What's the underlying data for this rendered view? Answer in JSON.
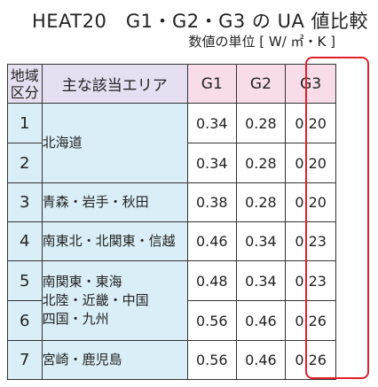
{
  "title": "HEAT20　G1・G2・G3 の UA 値比較",
  "unit": "数値の単位 [ W/ ㎡・K ]",
  "headers": {
    "region_line1": "地域",
    "region_line2": "区分",
    "area": "主な該当エリア",
    "g1": "G1",
    "g2": "G2",
    "g3": "G3"
  },
  "rows": [
    {
      "ku": "1",
      "g1": "0.34",
      "g2": "0.28",
      "g3": "0.20"
    },
    {
      "ku": "2",
      "g1": "0.34",
      "g2": "0.28",
      "g3": "0.20"
    },
    {
      "ku": "3",
      "g1": "0.38",
      "g2": "0.28",
      "g3": "0.20"
    },
    {
      "ku": "4",
      "g1": "0.46",
      "g2": "0.34",
      "g3": "0.23"
    },
    {
      "ku": "5",
      "g1": "0.48",
      "g2": "0.34",
      "g3": "0.23"
    },
    {
      "ku": "6",
      "g1": "0.56",
      "g2": "0.46",
      "g3": "0.26"
    },
    {
      "ku": "7",
      "g1": "0.56",
      "g2": "0.46",
      "g3": "0.26"
    }
  ],
  "areas": {
    "hokkaido": "北海道",
    "tohoku": "青森・岩手・秋田",
    "kanto_north": "南東北・北関東・信越",
    "group56_line1": "南関東・東海",
    "group56_line2": "北陸・近畿・中国",
    "group56_line3": "四国・九州",
    "kyushu_south": "宮崎・鹿児島"
  },
  "colors": {
    "header_bg": "#e6dff1",
    "header_g_bg": "#f8dde9",
    "region_bg": "#daeef7",
    "highlight_border": "#e0202a"
  }
}
